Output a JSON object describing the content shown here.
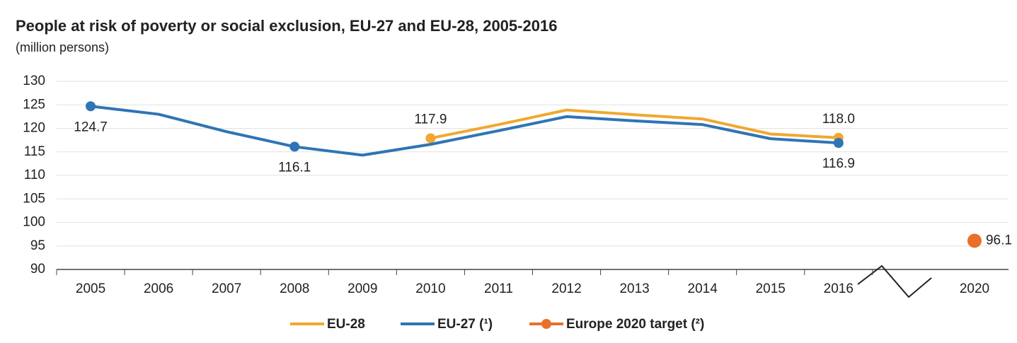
{
  "chart_data": {
    "type": "line",
    "title": "People at risk of poverty or social exclusion, EU-27 and EU-28, 2005-2016",
    "subtitle": "(million persons)",
    "categories": [
      "2005",
      "2006",
      "2007",
      "2008",
      "2009",
      "2010",
      "2011",
      "2012",
      "2013",
      "2014",
      "2015",
      "2016",
      null,
      "2020"
    ],
    "series": [
      {
        "name": "EU-28",
        "color": "#f0a830",
        "values": [
          null,
          null,
          null,
          null,
          null,
          117.9,
          120.8,
          123.9,
          122.9,
          122.0,
          118.8,
          118.0,
          null,
          null
        ],
        "value_labels": [
          null,
          null,
          null,
          null,
          null,
          "117.9",
          null,
          null,
          null,
          null,
          null,
          "118.0",
          null,
          null
        ]
      },
      {
        "name": "EU-27 (¹)",
        "color": "#2f74b5",
        "values": [
          124.7,
          123.0,
          119.3,
          116.1,
          114.3,
          116.6,
          119.5,
          122.5,
          121.6,
          120.8,
          117.8,
          116.9,
          null,
          null
        ],
        "value_labels": [
          "124.7",
          null,
          null,
          "116.1",
          null,
          null,
          null,
          null,
          null,
          null,
          null,
          "116.9",
          null,
          null
        ]
      },
      {
        "name": "Europe 2020 target (²)",
        "color": "#e8702a",
        "values": [
          null,
          null,
          null,
          null,
          null,
          null,
          null,
          null,
          null,
          null,
          null,
          null,
          null,
          96.1
        ],
        "value_labels": [
          null,
          null,
          null,
          null,
          null,
          null,
          null,
          null,
          null,
          null,
          null,
          null,
          null,
          "96.1"
        ]
      }
    ],
    "ylim": [
      90,
      130
    ],
    "yticks": [
      90,
      95,
      100,
      105,
      110,
      115,
      120,
      125,
      130
    ],
    "grid": true,
    "legend": "bottom"
  }
}
